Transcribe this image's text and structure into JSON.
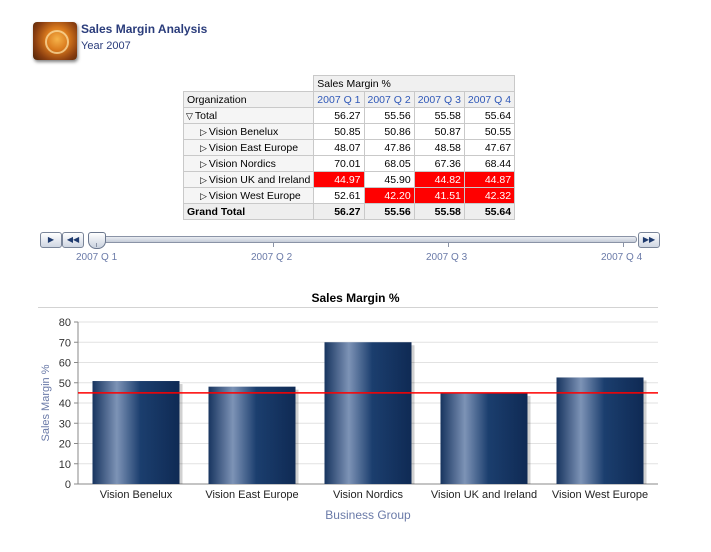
{
  "header": {
    "title": "Sales Margin Analysis",
    "subtitle": "Year 2007"
  },
  "pivot": {
    "measure": "Sales Margin %",
    "row_header": "Organization",
    "columns": [
      "2007 Q 1",
      "2007 Q 2",
      "2007 Q 3",
      "2007 Q 4"
    ],
    "rows": [
      {
        "label": "Total",
        "expander": "▽",
        "values": [
          "56.27",
          "55.56",
          "55.58",
          "55.64"
        ],
        "alerts": [
          false,
          false,
          false,
          false
        ]
      },
      {
        "label": "Vision Benelux",
        "expander": "▷",
        "values": [
          "50.85",
          "50.86",
          "50.87",
          "50.55"
        ],
        "alerts": [
          false,
          false,
          false,
          false
        ]
      },
      {
        "label": "Vision East Europe",
        "expander": "▷",
        "values": [
          "48.07",
          "47.86",
          "48.58",
          "47.67"
        ],
        "alerts": [
          false,
          false,
          false,
          false
        ]
      },
      {
        "label": "Vision Nordics",
        "expander": "▷",
        "values": [
          "70.01",
          "68.05",
          "67.36",
          "68.44"
        ],
        "alerts": [
          false,
          false,
          false,
          false
        ]
      },
      {
        "label": "Vision UK and Ireland",
        "expander": "▷",
        "values": [
          "44.97",
          "45.90",
          "44.82",
          "44.87"
        ],
        "alerts": [
          true,
          false,
          true,
          true
        ]
      },
      {
        "label": "Vision West Europe",
        "expander": "▷",
        "values": [
          "52.61",
          "42.20",
          "41.51",
          "42.32"
        ],
        "alerts": [
          false,
          true,
          true,
          true
        ]
      }
    ],
    "grand_total": {
      "label": "Grand Total",
      "values": [
        "56.27",
        "55.56",
        "55.58",
        "55.64"
      ]
    },
    "alert_color": "#ff0000"
  },
  "slider": {
    "play_icon": "play-icon",
    "rewind_icon": "rewind-icon",
    "forward_icon": "fast-forward-icon",
    "labels": [
      "2007 Q 1",
      "2007 Q 2",
      "2007 Q 3",
      "2007 Q 4"
    ],
    "selected": "2007 Q 1"
  },
  "chart_data": {
    "type": "bar",
    "title": "Sales Margin %",
    "xlabel": "Business Group",
    "ylabel": "Sales Margin %",
    "categories": [
      "Vision Benelux",
      "Vision East Europe",
      "Vision Nordics",
      "Vision UK and Ireland",
      "Vision West Europe"
    ],
    "values": [
      50.85,
      48.07,
      70.01,
      44.97,
      52.61
    ],
    "ylim": [
      0,
      80
    ],
    "yticks": [
      0,
      10,
      20,
      30,
      40,
      50,
      60,
      70,
      80
    ],
    "reference_line": 45,
    "bar_color": "#1c3f6e",
    "reference_color": "#ff0000",
    "grid": true
  }
}
